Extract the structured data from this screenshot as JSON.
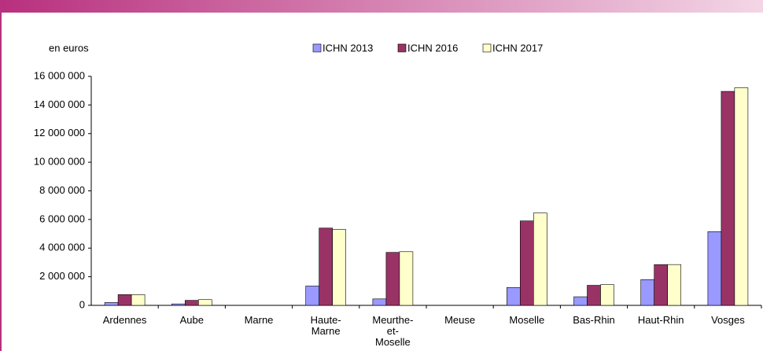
{
  "chart_data": {
    "type": "bar",
    "unit_label": "en euros",
    "categories": [
      "Ardennes",
      "Aube",
      "Marne",
      "Haute-\nMarne",
      "Meurthe-\net-\nMoselle",
      "Meuse",
      "Moselle",
      "Bas-Rhin",
      "Haut-Rhin",
      "Vosges"
    ],
    "series": [
      {
        "name": "ICHN 2013",
        "color": "#9999ff",
        "values": [
          200000,
          100000,
          0,
          1350000,
          450000,
          0,
          1250000,
          600000,
          1800000,
          5150000
        ]
      },
      {
        "name": "ICHN 2016",
        "color": "#993366",
        "values": [
          750000,
          350000,
          0,
          5400000,
          3700000,
          0,
          5900000,
          1400000,
          2850000,
          14950000
        ]
      },
      {
        "name": "ICHN 2017",
        "color": "#ffffcc",
        "values": [
          750000,
          400000,
          0,
          5300000,
          3750000,
          0,
          6450000,
          1450000,
          2850000,
          15200000
        ]
      }
    ],
    "ylim": [
      0,
      16000000
    ],
    "yticks": [
      0,
      {
        "value": 2000000,
        "label": "2 000 000"
      },
      {
        "value": 4000000,
        "label": "4 000 000"
      },
      {
        "value": 6000000,
        "label": "6 000 000"
      },
      {
        "value": 8000000,
        "label": "8 000 000"
      },
      {
        "value": 10000000,
        "label": "10 000 000"
      },
      {
        "value": 12000000,
        "label": "12 000 000"
      },
      {
        "value": 14000000,
        "label": "14 000 000"
      },
      {
        "value": 16000000,
        "label": "16 000 000"
      }
    ],
    "legend": "top"
  }
}
